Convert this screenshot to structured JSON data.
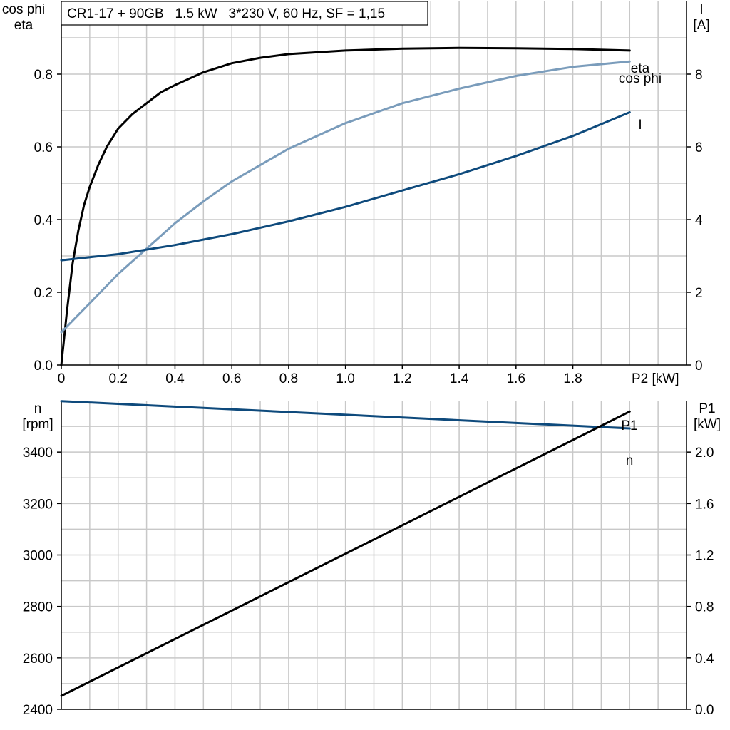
{
  "title": "CR1-17 + 90GB   1.5 kW   3*230 V, 60 Hz, SF = 1,15",
  "colors": {
    "black": "#000000",
    "light_blue": "#7a9cbb",
    "dark_blue": "#0e4a7c",
    "grid": "#c8c8c8"
  },
  "chart_data": [
    {
      "type": "line",
      "title": "",
      "xlabel": "P2 [kW]",
      "ylabel_left": [
        "cos phi",
        "eta"
      ],
      "ylabel_right": [
        "I",
        "[A]"
      ],
      "xlim": [
        0,
        2.2
      ],
      "ylim_left": [
        0,
        1.0
      ],
      "ylim_right": [
        0,
        10
      ],
      "x_ticks": [
        "0",
        "0.2",
        "0.4",
        "0.6",
        "0.8",
        "1.0",
        "1.2",
        "1.4",
        "1.6",
        "1.8"
      ],
      "y_ticks_left": [
        "0.0",
        "0.2",
        "0.4",
        "0.6",
        "0.8"
      ],
      "y_ticks_right": [
        "0",
        "2",
        "4",
        "6",
        "8"
      ],
      "grid": true,
      "series": [
        {
          "name": "eta",
          "axis": "left",
          "color": "#000000",
          "x": [
            0,
            0.02,
            0.04,
            0.06,
            0.08,
            0.1,
            0.13,
            0.16,
            0.2,
            0.25,
            0.3,
            0.35,
            0.4,
            0.5,
            0.6,
            0.7,
            0.8,
            1.0,
            1.2,
            1.4,
            1.6,
            1.8,
            2.0
          ],
          "y": [
            0.0,
            0.15,
            0.28,
            0.37,
            0.44,
            0.49,
            0.55,
            0.6,
            0.65,
            0.69,
            0.72,
            0.75,
            0.77,
            0.805,
            0.83,
            0.845,
            0.855,
            0.865,
            0.87,
            0.872,
            0.871,
            0.869,
            0.865
          ]
        },
        {
          "name": "cos phi",
          "axis": "left",
          "color": "#7a9cbb",
          "x": [
            0,
            0.1,
            0.2,
            0.3,
            0.4,
            0.5,
            0.6,
            0.8,
            1.0,
            1.2,
            1.4,
            1.6,
            1.8,
            2.0
          ],
          "y": [
            0.09,
            0.17,
            0.25,
            0.32,
            0.39,
            0.45,
            0.505,
            0.595,
            0.665,
            0.72,
            0.76,
            0.795,
            0.82,
            0.835
          ]
        },
        {
          "name": "I",
          "axis": "right",
          "color": "#0e4a7c",
          "x": [
            0,
            0.2,
            0.4,
            0.6,
            0.8,
            1.0,
            1.2,
            1.4,
            1.6,
            1.8,
            2.0
          ],
          "y": [
            2.88,
            3.05,
            3.3,
            3.6,
            3.95,
            4.35,
            4.8,
            5.25,
            5.75,
            6.3,
            6.95
          ]
        }
      ]
    },
    {
      "type": "line",
      "title": "",
      "xlabel": "",
      "ylabel_left": [
        "n",
        "[rpm]"
      ],
      "ylabel_right": [
        "P1",
        "[kW]"
      ],
      "xlim": [
        0,
        2.2
      ],
      "ylim_left": [
        2400,
        3600
      ],
      "ylim_right": [
        0,
        2.4
      ],
      "y_ticks_left": [
        "2400",
        "2600",
        "2800",
        "3000",
        "3200",
        "3400"
      ],
      "y_ticks_right": [
        "0.0",
        "0.4",
        "0.8",
        "1.2",
        "1.6",
        "2.0"
      ],
      "grid": true,
      "series": [
        {
          "name": "n",
          "axis": "left",
          "color": "#0e4a7c",
          "x": [
            0,
            2.0
          ],
          "y": [
            3598,
            3492
          ]
        },
        {
          "name": "P1",
          "axis": "right",
          "color": "#000000",
          "x": [
            0,
            2.0
          ],
          "y": [
            0.105,
            2.315
          ]
        }
      ]
    }
  ]
}
